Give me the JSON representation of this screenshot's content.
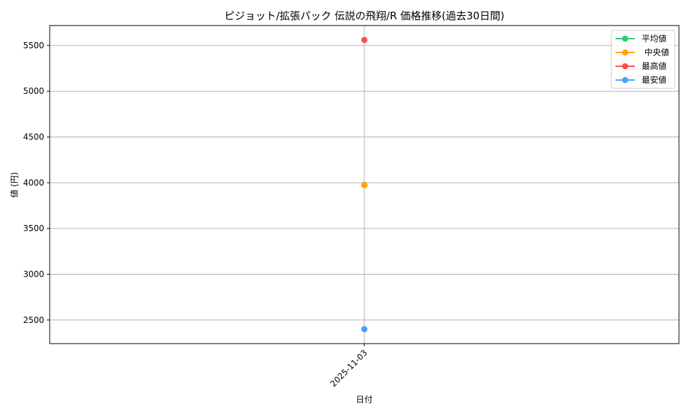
{
  "chart_data": {
    "type": "line",
    "title": "ピジョット/拡張パック 伝説の飛翔/R 価格推移(過去30日間)",
    "xlabel": "日付",
    "ylabel": "値 (円)",
    "categories": [
      "2025-11-03"
    ],
    "series": [
      {
        "name": "平均値",
        "color": "#2ecc71",
        "values": [
          3975
        ]
      },
      {
        "name": " 中央値",
        "color": "#ffa500",
        "values": [
          3975
        ]
      },
      {
        "name": "最高値",
        "color": "#ff4d4d",
        "values": [
          5560
        ]
      },
      {
        "name": "最安値",
        "color": "#4d9fff",
        "values": [
          2400
        ]
      }
    ],
    "ylim": [
      2242,
      5718
    ],
    "yticks": [
      2500,
      3000,
      3500,
      4000,
      4500,
      5000,
      5500
    ],
    "grid": true,
    "legend": "top-right",
    "marker": "circle"
  }
}
